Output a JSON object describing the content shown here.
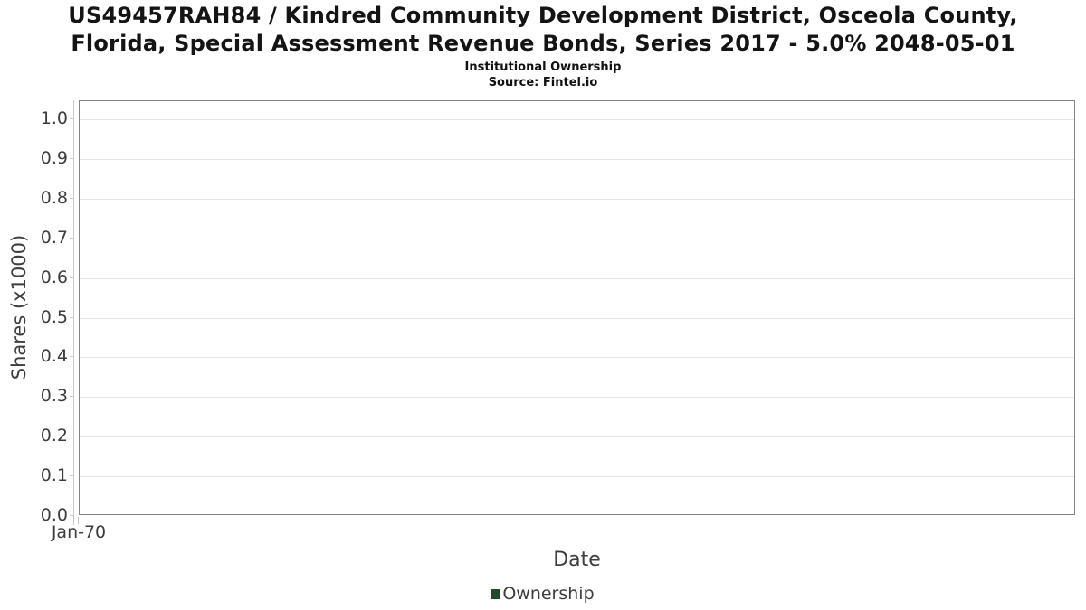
{
  "header": {
    "title_lines": [
      "US49457RAH84 / Kindred Community Development District, Osceola County,",
      "Florida, Special Assessment Revenue Bonds, Series 2017 - 5.0% 2048-05-01"
    ],
    "subtitle": "Institutional Ownership",
    "source": "Source: Fintel.io"
  },
  "chart_data": {
    "type": "line",
    "title": "US49457RAH84 / Kindred Community Development District, Osceola County, Florida, Special Assessment Revenue Bonds, Series 2017 - 5.0% 2048-05-01",
    "subtitle": "Institutional Ownership",
    "source": "Source: Fintel.io",
    "xlabel": "Date",
    "ylabel": "Shares (x1000)",
    "x_tick_labels": [
      "Jan-70"
    ],
    "y_ticks": [
      0.0,
      0.1,
      0.2,
      0.3,
      0.4,
      0.5,
      0.6,
      0.7,
      0.8,
      0.9,
      1.0
    ],
    "y_tick_labels": [
      "0.0",
      "0.1",
      "0.2",
      "0.3",
      "0.4",
      "0.5",
      "0.6",
      "0.7",
      "0.8",
      "0.9",
      "1.0"
    ],
    "ylim": [
      0.0,
      1.045
    ],
    "grid": true,
    "legend_position": "bottom",
    "series": [
      {
        "name": "Ownership",
        "color": "#1d4b2c",
        "x": [],
        "values": []
      }
    ]
  },
  "colors": {
    "accent": "#1d4b2c",
    "grid": "#e6e6e6",
    "plot_border": "#828282",
    "axis_line": "#c9c9c9",
    "text": "#3d3d3d"
  }
}
